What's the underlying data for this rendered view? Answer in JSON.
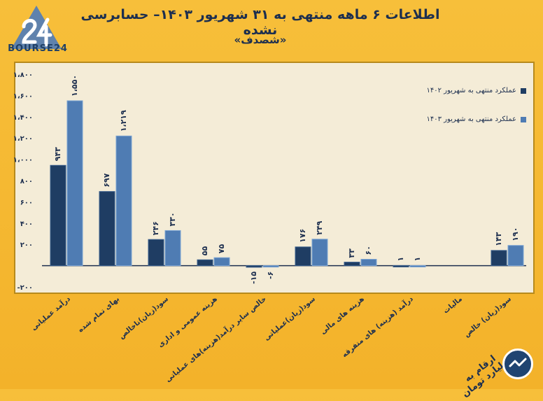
{
  "header": {
    "brand": "BOURSE24",
    "title": "اطلاعات ۶ ماهه منتهی به ۳۱ شهریور ۱۴۰۳– حسابرسی نشده",
    "subtitle": "«شصدف»"
  },
  "footer": {
    "unit_note": "ارقام به میلیارد تومان"
  },
  "colors": {
    "background": "#f3b22a",
    "panel": "#f4ecd7",
    "series_1402": "#1f3d63",
    "series_1403": "#4f7cb3",
    "text": "#1d2f4f"
  },
  "chart_data": {
    "type": "bar",
    "title": "اطلاعات ۶ ماهه منتهی به ۳۱ شهریور ۱۴۰۳– حسابرسی نشده",
    "categories": [
      "درآمد عملیاتی",
      "بهای تمام شده",
      "سود(زیان)ناخالص",
      "هزینه عمومی و اداری",
      "خالص سایر درآمد(هزینه)های عملیاتی",
      "سود(زیان)عملیاتی",
      "هزینه های مالی",
      "درآمد (هزینه) های متفرقه",
      "مالیات",
      "سود(زیان) خالص"
    ],
    "series": [
      {
        "name": "عملکرد منتهی به شهریور ۱۴۰۲",
        "values": [
          943,
          697,
          246,
          55,
          -15,
          176,
          33,
          1,
          0,
          143
        ],
        "labels": [
          "۹۴۳",
          "۶۹۷",
          "۲۴۶",
          "۵۵",
          "-۱۵",
          "۱۷۶",
          "۳۳",
          "۱",
          "",
          "۱۴۳"
        ]
      },
      {
        "name": "عملکرد منتهی به شهریور ۱۴۰۳",
        "values": [
          1550,
          1219,
          330,
          75,
          -6,
          249,
          60,
          1,
          0,
          190
        ],
        "labels": [
          "۱،۵۵۰",
          "۱،۲۱۹",
          "۳۳۰",
          "۷۵",
          "-۶",
          "۲۴۹",
          "۶۰",
          "۱",
          "",
          "۱۹۰"
        ]
      }
    ],
    "yticks": [
      -200,
      200,
      400,
      600,
      800,
      1000,
      1200,
      1400,
      1600,
      1800
    ],
    "ytick_labels": [
      "-۲۰۰",
      "۲۰۰",
      "۴۰۰",
      "۶۰۰",
      "۸۰۰",
      "۱،۰۰۰",
      "۱،۲۰۰",
      "۱،۴۰۰",
      "۱،۶۰۰",
      "۱،۸۰۰"
    ],
    "ylim": [
      -200,
      1800
    ],
    "legend_position": "top-right"
  }
}
